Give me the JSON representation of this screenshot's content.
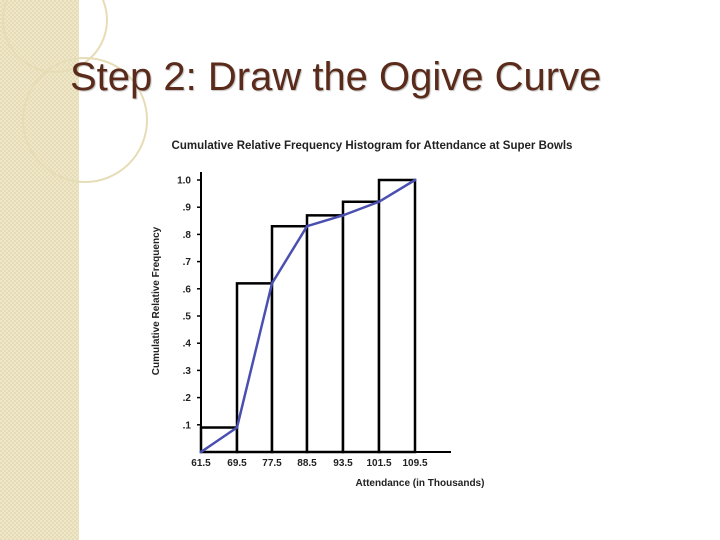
{
  "slide": {
    "title": "Step 2: Draw the Ogive Curve"
  },
  "colors": {
    "title": "#5a2a1a",
    "ogive_line": "#4a4fb0",
    "bar_stroke": "#000000",
    "strip": "#efe7c7"
  },
  "chart_data": {
    "type": "bar",
    "title": "Cumulative Relative Frequency Histogram for Attendance at Super Bowls",
    "xlabel": "Attendance (in Thousands)",
    "ylabel": "Cumulative Relative Frequency",
    "boundaries": [
      61.5,
      69.5,
      77.5,
      88.5,
      93.5,
      101.5,
      109.5
    ],
    "x_tick_labels": [
      "61.5",
      "69.5",
      "77.5",
      "88.5",
      "93.5",
      "101.5",
      "109.5"
    ],
    "values": [
      0.09,
      0.62,
      0.83,
      0.87,
      0.92,
      1.0
    ],
    "y_ticks": [
      0.1,
      0.2,
      0.3,
      0.4,
      0.5,
      0.6,
      0.7,
      0.8,
      0.9,
      1.0
    ],
    "y_tick_labels": [
      ".1",
      ".2",
      ".3",
      ".4",
      ".5",
      ".6",
      ".7",
      ".8",
      ".9",
      "1.0"
    ],
    "ylim": [
      0,
      1.0
    ],
    "ogive": {
      "x": [
        61.5,
        69.5,
        77.5,
        88.5,
        93.5,
        101.5,
        109.5
      ],
      "y": [
        0,
        0.09,
        0.62,
        0.83,
        0.87,
        0.92,
        1.0
      ]
    },
    "grid": false
  }
}
